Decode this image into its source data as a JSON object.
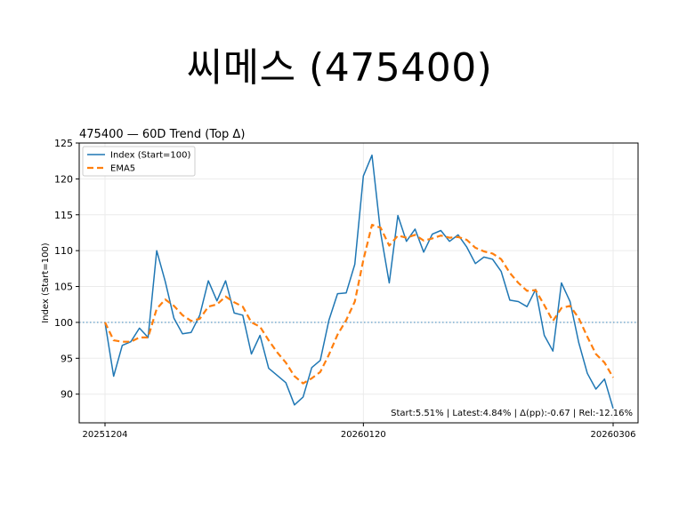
{
  "slide_title": "씨메스 (475400)",
  "chart_data": {
    "type": "line",
    "title": "475400 — 60D Trend (Top Δ)",
    "xlabel": "",
    "ylabel": "Index (Start=100)",
    "ylim": [
      86,
      125
    ],
    "yticks": [
      90,
      95,
      100,
      105,
      110,
      115,
      120,
      125
    ],
    "x_tick_labels": [
      {
        "index": 0,
        "label": "20251204"
      },
      {
        "index": 30,
        "label": "20260120"
      },
      {
        "index": 59,
        "label": "20260306"
      }
    ],
    "reference_line": 100,
    "grid": true,
    "legend_placement": "top-left",
    "annotation": "Start:5.51% | Latest:4.84% | Δ(pp):-0.67 | Rel:-12.16%",
    "colors": {
      "index": "#1f77b4",
      "ema": "#ff7f0e",
      "reference": "#1f77b4"
    },
    "series": [
      {
        "name": "Index (Start=100)",
        "style": "solid",
        "values": [
          100.0,
          92.5,
          96.8,
          97.3,
          99.2,
          97.9,
          110.0,
          105.7,
          100.6,
          98.4,
          98.6,
          101.0,
          105.8,
          103.0,
          105.8,
          101.3,
          101.0,
          95.6,
          98.2,
          93.6,
          92.6,
          91.6,
          88.5,
          89.6,
          93.7,
          94.7,
          100.3,
          104.0,
          104.1,
          108.1,
          120.4,
          123.3,
          112.5,
          105.5,
          114.9,
          111.3,
          113.0,
          109.8,
          112.3,
          112.8,
          111.3,
          112.2,
          110.5,
          108.2,
          109.1,
          108.8,
          107.1,
          103.1,
          102.9,
          102.2,
          104.6,
          98.2,
          96.0,
          105.5,
          102.9,
          97.2,
          92.9,
          90.7,
          92.1,
          88.0
        ]
      },
      {
        "name": "EMA5",
        "style": "dashed",
        "values": [
          100.0,
          97.5,
          97.3,
          97.3,
          97.9,
          97.9,
          101.9,
          103.2,
          102.3,
          101.0,
          100.2,
          100.5,
          102.2,
          102.5,
          103.6,
          102.8,
          102.2,
          100.0,
          99.4,
          97.5,
          95.8,
          94.4,
          92.5,
          91.5,
          92.2,
          93.1,
          95.5,
          98.3,
          100.3,
          102.9,
          108.7,
          113.6,
          113.2,
          110.7,
          112.1,
          111.8,
          112.2,
          111.4,
          111.7,
          112.1,
          111.8,
          111.9,
          111.5,
          110.4,
          109.9,
          109.6,
          108.8,
          106.9,
          105.5,
          104.4,
          104.5,
          102.4,
          100.2,
          102.0,
          102.3,
          100.6,
          98.0,
          95.6,
          94.4,
          92.3
        ]
      }
    ]
  }
}
